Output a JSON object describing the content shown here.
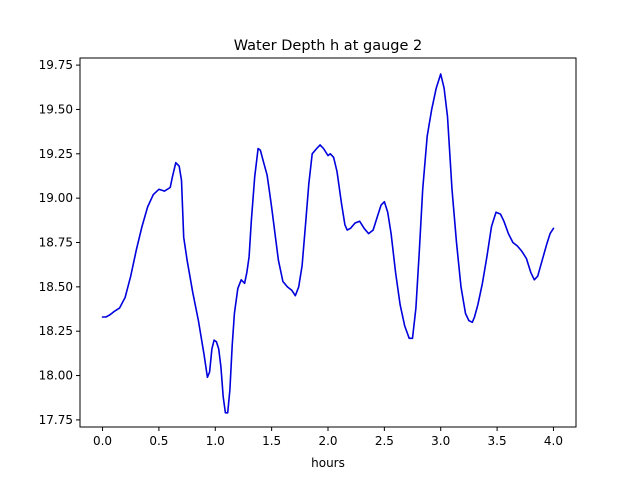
{
  "chart_data": {
    "type": "line",
    "title": "Water Depth h at gauge 2",
    "xlabel": "hours",
    "ylabel": "",
    "xlim": [
      -0.2,
      4.2
    ],
    "ylim": [
      17.71,
      19.79
    ],
    "grid": false,
    "x_ticks": [
      {
        "value": 0.0,
        "label": "0.0"
      },
      {
        "value": 0.5,
        "label": "0.5"
      },
      {
        "value": 1.0,
        "label": "1.0"
      },
      {
        "value": 1.5,
        "label": "1.5"
      },
      {
        "value": 2.0,
        "label": "2.0"
      },
      {
        "value": 2.5,
        "label": "2.5"
      },
      {
        "value": 3.0,
        "label": "3.0"
      },
      {
        "value": 3.5,
        "label": "3.5"
      },
      {
        "value": 4.0,
        "label": "4.0"
      }
    ],
    "y_ticks": [
      {
        "value": 17.75,
        "label": "17.75"
      },
      {
        "value": 18.0,
        "label": "18.00"
      },
      {
        "value": 18.25,
        "label": "18.25"
      },
      {
        "value": 18.5,
        "label": "18.50"
      },
      {
        "value": 18.75,
        "label": "18.75"
      },
      {
        "value": 19.0,
        "label": "19.00"
      },
      {
        "value": 19.25,
        "label": "19.25"
      },
      {
        "value": 19.5,
        "label": "19.50"
      },
      {
        "value": 19.75,
        "label": "19.75"
      }
    ],
    "series": [
      {
        "color": "#0000dd",
        "x": [
          0.0,
          0.03,
          0.06,
          0.08,
          0.1,
          0.15,
          0.2,
          0.25,
          0.3,
          0.35,
          0.4,
          0.45,
          0.5,
          0.55,
          0.6,
          0.62,
          0.65,
          0.68,
          0.7,
          0.72,
          0.75,
          0.8,
          0.85,
          0.9,
          0.93,
          0.95,
          0.97,
          0.99,
          1.01,
          1.03,
          1.05,
          1.07,
          1.09,
          1.11,
          1.13,
          1.15,
          1.17,
          1.2,
          1.23,
          1.26,
          1.28,
          1.3,
          1.32,
          1.35,
          1.38,
          1.4,
          1.43,
          1.46,
          1.48,
          1.5,
          1.53,
          1.56,
          1.6,
          1.64,
          1.68,
          1.71,
          1.74,
          1.77,
          1.8,
          1.83,
          1.86,
          1.9,
          1.93,
          1.96,
          2.0,
          2.02,
          2.05,
          2.08,
          2.12,
          2.15,
          2.17,
          2.2,
          2.24,
          2.28,
          2.32,
          2.36,
          2.4,
          2.44,
          2.47,
          2.5,
          2.53,
          2.56,
          2.6,
          2.64,
          2.68,
          2.72,
          2.75,
          2.78,
          2.81,
          2.84,
          2.88,
          2.92,
          2.96,
          3.0,
          3.03,
          3.06,
          3.1,
          3.14,
          3.18,
          3.22,
          3.25,
          3.28,
          3.3,
          3.33,
          3.37,
          3.41,
          3.45,
          3.49,
          3.53,
          3.56,
          3.6,
          3.64,
          3.68,
          3.72,
          3.76,
          3.8,
          3.83,
          3.86,
          3.9,
          3.94,
          3.97,
          4.0
        ],
        "y": [
          18.33,
          18.33,
          18.34,
          18.35,
          18.36,
          18.38,
          18.44,
          18.56,
          18.71,
          18.84,
          18.95,
          19.02,
          19.05,
          19.04,
          19.06,
          19.12,
          19.2,
          19.18,
          19.1,
          18.78,
          18.65,
          18.47,
          18.31,
          18.12,
          17.99,
          18.02,
          18.15,
          18.2,
          18.19,
          18.15,
          18.05,
          17.88,
          17.79,
          17.79,
          17.92,
          18.17,
          18.35,
          18.49,
          18.54,
          18.52,
          18.58,
          18.67,
          18.87,
          19.12,
          19.28,
          19.27,
          19.2,
          19.13,
          19.04,
          18.95,
          18.8,
          18.65,
          18.53,
          18.5,
          18.48,
          18.45,
          18.5,
          18.62,
          18.85,
          19.08,
          19.25,
          19.28,
          19.3,
          19.28,
          19.24,
          19.25,
          19.23,
          19.15,
          18.97,
          18.85,
          18.82,
          18.83,
          18.86,
          18.87,
          18.83,
          18.8,
          18.82,
          18.9,
          18.96,
          18.98,
          18.92,
          18.8,
          18.58,
          18.4,
          18.28,
          18.21,
          18.21,
          18.38,
          18.7,
          19.05,
          19.35,
          19.5,
          19.62,
          19.7,
          19.62,
          19.46,
          19.05,
          18.75,
          18.5,
          18.35,
          18.31,
          18.3,
          18.33,
          18.4,
          18.52,
          18.67,
          18.84,
          18.92,
          18.91,
          18.87,
          18.8,
          18.75,
          18.73,
          18.7,
          18.66,
          18.58,
          18.54,
          18.56,
          18.65,
          18.74,
          18.8,
          18.83
        ]
      }
    ]
  }
}
